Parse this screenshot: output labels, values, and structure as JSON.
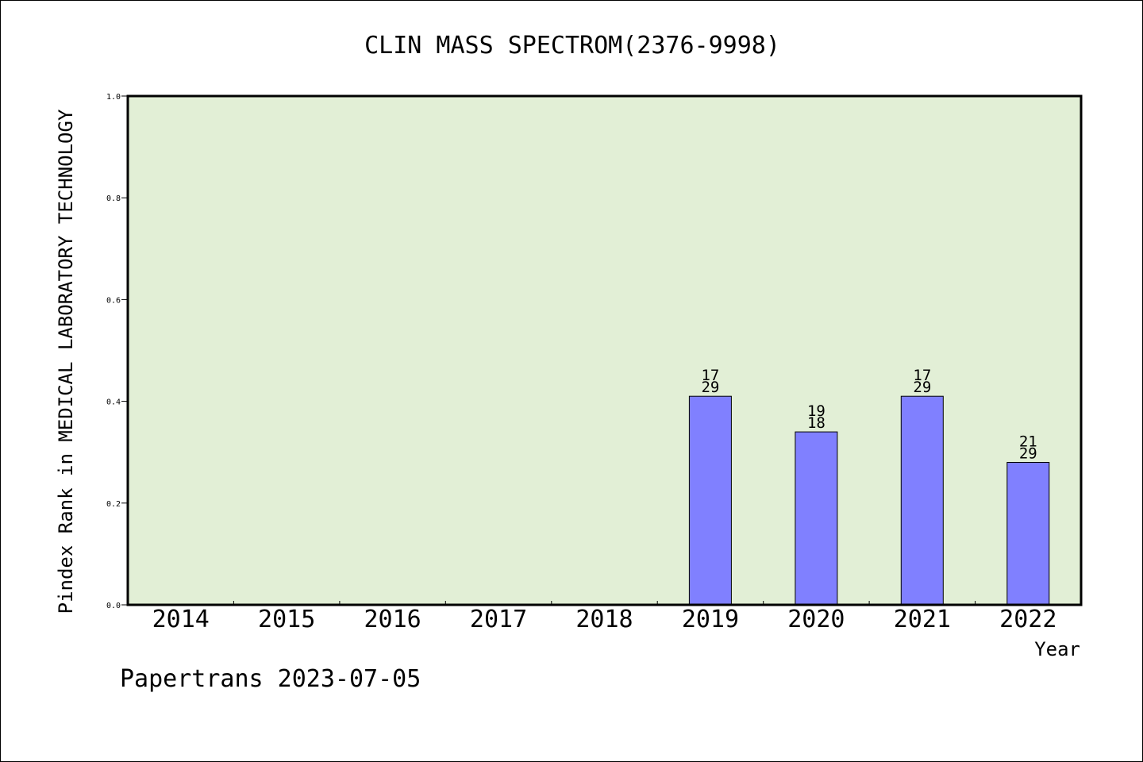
{
  "chart_data": {
    "type": "bar",
    "title": "CLIN MASS SPECTROM(2376-9998)",
    "xlabel": "Year",
    "ylabel": "Pindex Rank in MEDICAL LABORATORY TECHNOLOGY",
    "ylim": [
      0,
      1.0
    ],
    "yticks": [
      0.0,
      0.2,
      0.4,
      0.6,
      0.8,
      1.0
    ],
    "ytick_labels": [
      "0.0",
      "0.2",
      "0.4",
      "0.6",
      "0.8",
      "1.0"
    ],
    "categories": [
      "2014",
      "2015",
      "2016",
      "2017",
      "2018",
      "2019",
      "2020",
      "2021",
      "2022"
    ],
    "values": [
      null,
      null,
      null,
      null,
      null,
      0.41,
      0.34,
      0.41,
      0.28
    ],
    "bar_labels": [
      null,
      null,
      null,
      null,
      null,
      {
        "top": "17",
        "bottom": "29"
      },
      {
        "top": "19",
        "bottom": "18"
      },
      {
        "top": "17",
        "bottom": "29"
      },
      {
        "top": "21",
        "bottom": "29"
      }
    ],
    "grid": false,
    "colors": {
      "plot_background": "#e2efd6",
      "bar_fill": "#8080ff",
      "bar_stroke": "#000000"
    }
  },
  "footer": {
    "credit": "Papertrans 2023-07-05"
  }
}
